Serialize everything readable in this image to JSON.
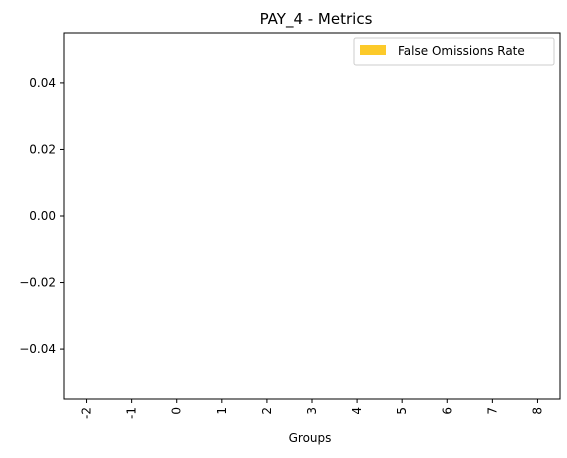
{
  "chart_data": {
    "type": "bar",
    "title": "PAY_4 - Metrics",
    "xlabel": "Groups",
    "ylabel": "",
    "categories": [
      "-2",
      "-1",
      "0",
      "1",
      "2",
      "3",
      "4",
      "5",
      "6",
      "7",
      "8"
    ],
    "series": [
      {
        "name": "False Omissions Rate",
        "color": "#fcca2a",
        "values": [
          0,
          0,
          0,
          0,
          0,
          0,
          0,
          0,
          0,
          0,
          0
        ]
      }
    ],
    "ylim": [
      -0.055,
      0.055
    ],
    "yticks": [
      0.04,
      0.02,
      0.0,
      -0.02,
      -0.04
    ],
    "ytick_labels": [
      "0.04",
      "0.02",
      "0.00",
      "−0.02",
      "−0.04"
    ],
    "grid": false,
    "legend_position": "upper-right"
  }
}
